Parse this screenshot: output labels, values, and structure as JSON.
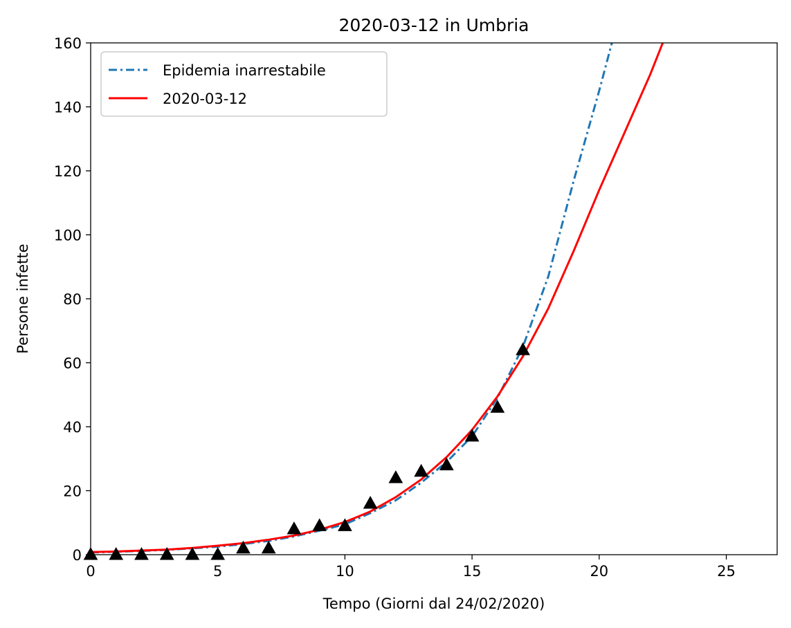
{
  "chart_data": {
    "type": "line",
    "title": "2020-03-12 in Umbria",
    "xlabel": "Tempo (Giorni dal 24/02/2020)",
    "ylabel": "Persone infette",
    "xlim": [
      0,
      27
    ],
    "ylim": [
      0,
      160
    ],
    "x_ticks": [
      0,
      5,
      10,
      15,
      20,
      25
    ],
    "y_ticks": [
      0,
      20,
      40,
      60,
      80,
      100,
      120,
      140,
      160
    ],
    "grid": false,
    "legend_position": "top-left",
    "series": [
      {
        "name": "Epidemia inarrestabile",
        "style": "dash-dot",
        "color": "#1f77b4",
        "x": [
          0,
          1,
          2,
          3,
          4,
          5,
          6,
          7,
          8,
          9,
          10,
          11,
          12,
          13,
          14,
          15,
          16,
          17,
          18,
          19,
          20,
          20.5
        ],
        "y": [
          0.7,
          0.9,
          1.2,
          1.5,
          2.0,
          2.5,
          3.3,
          4.3,
          5.7,
          7.5,
          9.5,
          13,
          17,
          22.5,
          29,
          37,
          49,
          65,
          87,
          117,
          145,
          160
        ]
      },
      {
        "name": "2020-03-12",
        "style": "solid",
        "color": "#ff0000",
        "x": [
          0,
          1,
          2,
          3,
          4,
          5,
          6,
          7,
          8,
          9,
          10,
          11,
          12,
          13,
          14,
          15,
          16,
          17,
          18,
          19,
          20,
          21,
          22,
          22.5
        ],
        "y": [
          0.8,
          1.0,
          1.3,
          1.6,
          2.1,
          2.8,
          3.6,
          4.7,
          6.0,
          7.8,
          10.2,
          13.5,
          18,
          23.5,
          30.5,
          39,
          49.5,
          62,
          77,
          95,
          114,
          132,
          150,
          160
        ]
      },
      {
        "name": "",
        "style": "markers",
        "marker": "triangle",
        "color": "#000000",
        "x": [
          0,
          1,
          2,
          3,
          4,
          5,
          6,
          7,
          8,
          9,
          10,
          11,
          12,
          13,
          14,
          15,
          16,
          17
        ],
        "y": [
          0,
          0,
          0,
          0,
          0,
          0,
          2,
          2,
          8,
          9,
          9,
          16,
          24,
          26,
          28,
          37,
          46,
          64
        ]
      }
    ]
  }
}
